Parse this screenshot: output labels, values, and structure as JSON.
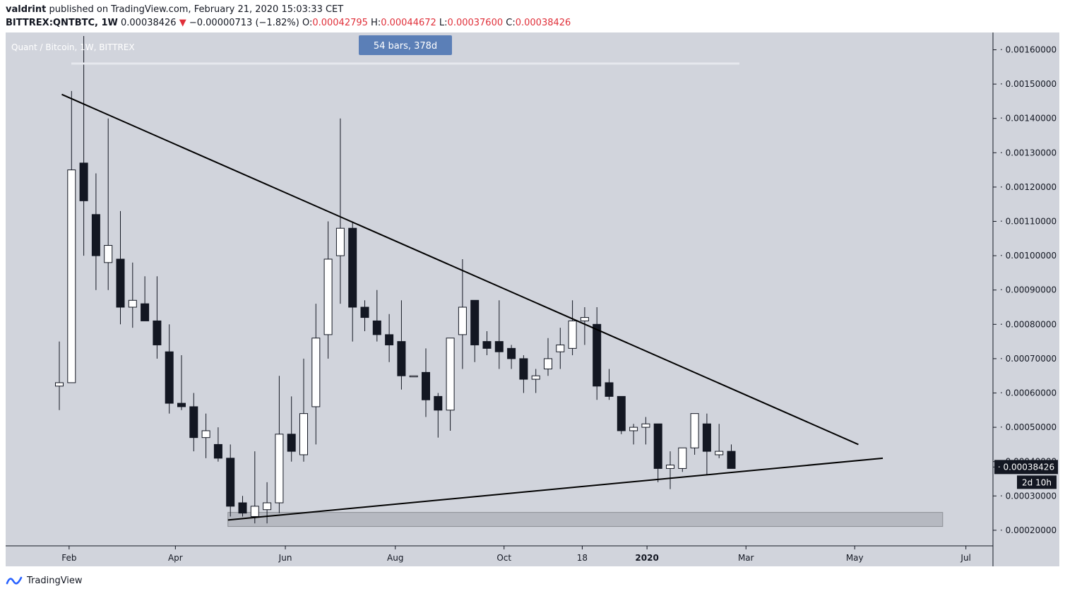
{
  "header": {
    "author": "valdrint",
    "published_text": "published on TradingView.com, February 21, 2020 15:03:33 CET",
    "symbol": "BITTREX:QNTBTC, 1W",
    "last": "0.00038426",
    "change_arrow": "▼",
    "change": "−0.00000713 (−1.82%)",
    "o_label": "O:",
    "o": "0.00042795",
    "h_label": "H:",
    "h": "0.00044672",
    "l_label": "L:",
    "l": "0.00037600",
    "c_label": "C:",
    "c": "0.00038426"
  },
  "footer": {
    "brand": "TradingView"
  },
  "colors": {
    "background": "#d1d4dc",
    "down": "#131722",
    "up": "#ffffff",
    "badge": "#5b7fb7",
    "negative": "#e0303a"
  },
  "chart_data": {
    "type": "candlestick",
    "title": "Quant / Bitcoin, 1W, BITTREX",
    "ylim": [
      0.00016,
      0.00164
    ],
    "y_ticks": [
      "0.00160000",
      "0.00150000",
      "0.00140000",
      "0.00130000",
      "0.00120000",
      "0.00110000",
      "0.00100000",
      "0.00090000",
      "0.00080000",
      "0.00070000",
      "0.00060000",
      "0.00050000",
      "0.00040000",
      "0.00030000",
      "0.00020000"
    ],
    "y_tick_values": [
      0.0016,
      0.0015,
      0.0014,
      0.0013,
      0.0012,
      0.0011,
      0.001,
      0.0009,
      0.0008,
      0.0007,
      0.0006,
      0.0005,
      0.0004,
      0.0003,
      0.0002
    ],
    "x_labels": [
      "Feb",
      "Apr",
      "Jun",
      "Aug",
      "Oct",
      "18",
      "2020",
      "Mar",
      "May",
      "Jul"
    ],
    "x_label_bar_index": [
      0.8,
      9.5,
      18.5,
      27.5,
      36.4,
      42.8,
      48.1,
      56.2,
      65.1,
      74.2
    ],
    "candles": [
      [
        0.00062,
        0.00063,
        0.00075,
        0.00055
      ],
      [
        0.00063,
        0.00125,
        0.00148,
        0.00063
      ],
      [
        0.00127,
        0.00116,
        0.00164,
        0.001
      ],
      [
        0.00112,
        0.001,
        0.00124,
        0.0009
      ],
      [
        0.00098,
        0.00103,
        0.0014,
        0.0009
      ],
      [
        0.00099,
        0.00085,
        0.00113,
        0.0008
      ],
      [
        0.00085,
        0.00087,
        0.00098,
        0.00079
      ],
      [
        0.00086,
        0.00081,
        0.00094,
        0.00081
      ],
      [
        0.00081,
        0.00074,
        0.00094,
        0.0007
      ],
      [
        0.00072,
        0.00057,
        0.0008,
        0.00054
      ],
      [
        0.00057,
        0.00056,
        0.00071,
        0.00055
      ],
      [
        0.00056,
        0.00047,
        0.0006,
        0.00043
      ],
      [
        0.00047,
        0.00049,
        0.00054,
        0.00041
      ],
      [
        0.00045,
        0.00041,
        0.0005,
        0.0004
      ],
      [
        0.00041,
        0.00027,
        0.00045,
        0.00024
      ],
      [
        0.00028,
        0.00025,
        0.0003,
        0.00024
      ],
      [
        0.00024,
        0.00027,
        0.00043,
        0.00022
      ],
      [
        0.00026,
        0.00028,
        0.00034,
        0.00022
      ],
      [
        0.00028,
        0.00048,
        0.00065,
        0.00025
      ],
      [
        0.00048,
        0.00043,
        0.00059,
        0.0004
      ],
      [
        0.00042,
        0.00054,
        0.0007,
        0.0004
      ],
      [
        0.00056,
        0.00076,
        0.00086,
        0.00045
      ],
      [
        0.00077,
        0.00099,
        0.0011,
        0.0007
      ],
      [
        0.001,
        0.00108,
        0.0014,
        0.00086
      ],
      [
        0.00108,
        0.00085,
        0.0011,
        0.00075
      ],
      [
        0.00085,
        0.00082,
        0.00087,
        0.00078
      ],
      [
        0.00081,
        0.00077,
        0.0009,
        0.00075
      ],
      [
        0.00077,
        0.00074,
        0.00083,
        0.00069
      ],
      [
        0.00075,
        0.00065,
        0.00087,
        0.00061
      ],
      [
        0.00065,
        0.00065,
        0.00065,
        0.00065
      ],
      [
        0.00066,
        0.00058,
        0.00073,
        0.00053
      ],
      [
        0.00059,
        0.00055,
        0.0006,
        0.00047
      ],
      [
        0.00055,
        0.00076,
        0.00076,
        0.00049
      ],
      [
        0.00077,
        0.00085,
        0.00099,
        0.00067
      ],
      [
        0.00087,
        0.00074,
        0.00087,
        0.00069
      ],
      [
        0.00075,
        0.00073,
        0.00078,
        0.00071
      ],
      [
        0.00075,
        0.00072,
        0.00087,
        0.00067
      ],
      [
        0.00073,
        0.0007,
        0.00074,
        0.00067
      ],
      [
        0.0007,
        0.00064,
        0.00071,
        0.0006
      ],
      [
        0.00064,
        0.00065,
        0.00067,
        0.0006
      ],
      [
        0.00067,
        0.0007,
        0.00076,
        0.00065
      ],
      [
        0.00072,
        0.00074,
        0.00079,
        0.00067
      ],
      [
        0.00073,
        0.00081,
        0.00087,
        0.00071
      ],
      [
        0.00081,
        0.00082,
        0.00085,
        0.00074
      ],
      [
        0.0008,
        0.00062,
        0.00085,
        0.00058
      ],
      [
        0.00063,
        0.00059,
        0.00067,
        0.00058
      ],
      [
        0.00059,
        0.00049,
        0.00059,
        0.00048
      ],
      [
        0.00049,
        0.0005,
        0.00051,
        0.00045
      ],
      [
        0.0005,
        0.00051,
        0.00053,
        0.00045
      ],
      [
        0.00051,
        0.00038,
        0.00051,
        0.00034
      ],
      [
        0.00038,
        0.00039,
        0.00043,
        0.00032
      ],
      [
        0.00038,
        0.00044,
        0.00044,
        0.00037
      ],
      [
        0.00044,
        0.00054,
        0.00054,
        0.00042
      ],
      [
        0.00051,
        0.00043,
        0.00054,
        0.00036
      ],
      [
        0.00042,
        0.00043,
        0.00051,
        0.00041
      ],
      [
        0.00043,
        0.00038,
        0.00045,
        0.00038
      ]
    ],
    "trendlines": [
      {
        "name": "",
        "from": [
          0.2,
          0.00147
        ],
        "to": [
          65.4,
          0.00045
        ]
      },
      {
        "name": "",
        "from": [
          13.8,
          0.00023
        ],
        "to": [
          67.4,
          0.00041
        ]
      }
    ],
    "range_box": {
      "from_bar": 13.8,
      "to_bar": 72.3,
      "low": 0.000211,
      "high": 0.000252
    },
    "measure_label": "54 bars, 378d",
    "price_label": "0.00038426",
    "countdown_label": "2d 10h"
  }
}
